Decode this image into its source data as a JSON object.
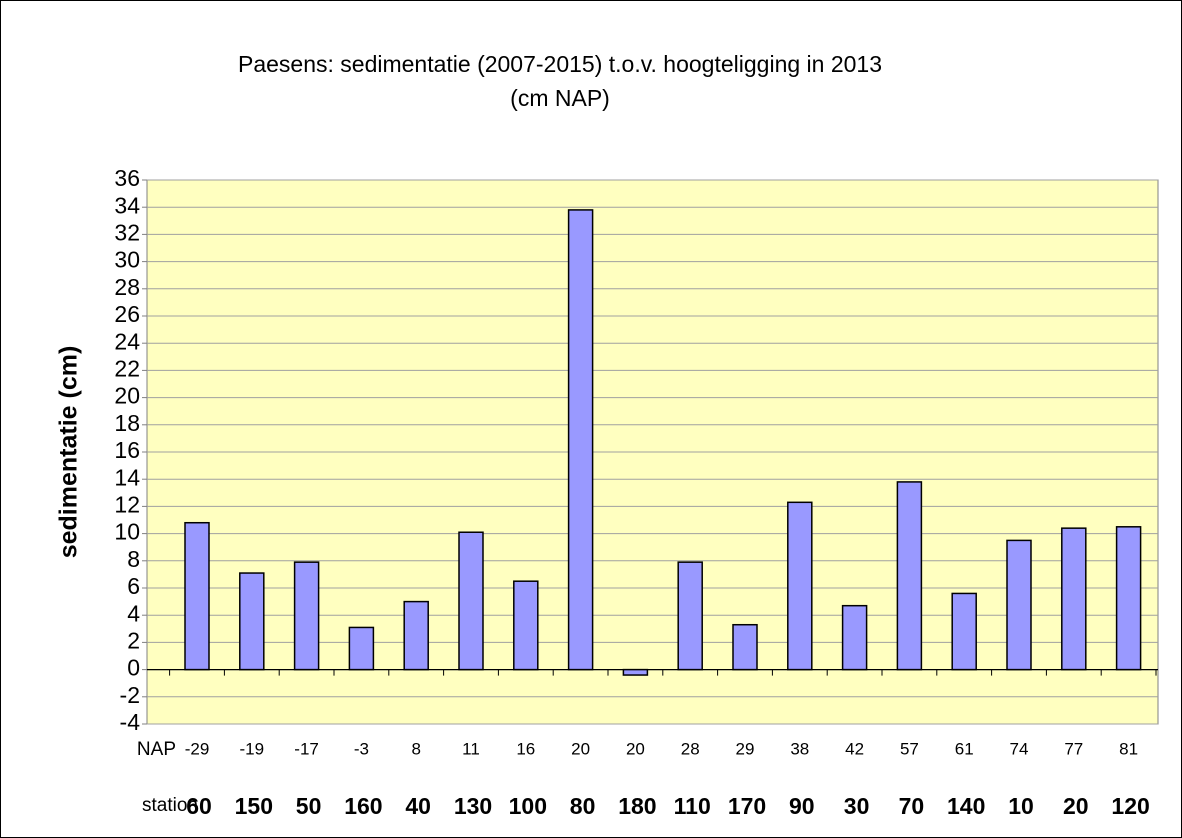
{
  "chart_data": {
    "type": "bar",
    "title": "Paesens: sedimentatie (2007-2015) t.o.v. hoogteligging  in 2013",
    "subtitle": "(cm NAP)",
    "y_label": "sedimentatie (cm)",
    "category_label": "NAP",
    "station_label": "station",
    "categories": [
      "-29",
      "-19",
      "-17",
      "-3",
      "8",
      "11",
      "16",
      "20",
      "20",
      "28",
      "29",
      "38",
      "42",
      "57",
      "61",
      "74",
      "77",
      "81"
    ],
    "stations": [
      "60",
      "150",
      "50",
      "160",
      "40",
      "130",
      "100",
      "80",
      "180",
      "110",
      "170",
      "90",
      "30",
      "70",
      "140",
      "10",
      "20",
      "120"
    ],
    "values": [
      10.8,
      7.1,
      7.9,
      3.1,
      5.0,
      10.1,
      6.5,
      33.8,
      -0.4,
      7.9,
      3.3,
      12.3,
      4.7,
      13.8,
      5.6,
      9.5,
      10.4,
      10.5
    ],
    "color": "#9999ff",
    "ylim": [
      -4,
      36
    ],
    "yticks": [
      -4,
      -2,
      0,
      2,
      4,
      6,
      8,
      10,
      12,
      14,
      16,
      18,
      20,
      22,
      24,
      26,
      28,
      30,
      32,
      34,
      36
    ],
    "grid": true
  }
}
